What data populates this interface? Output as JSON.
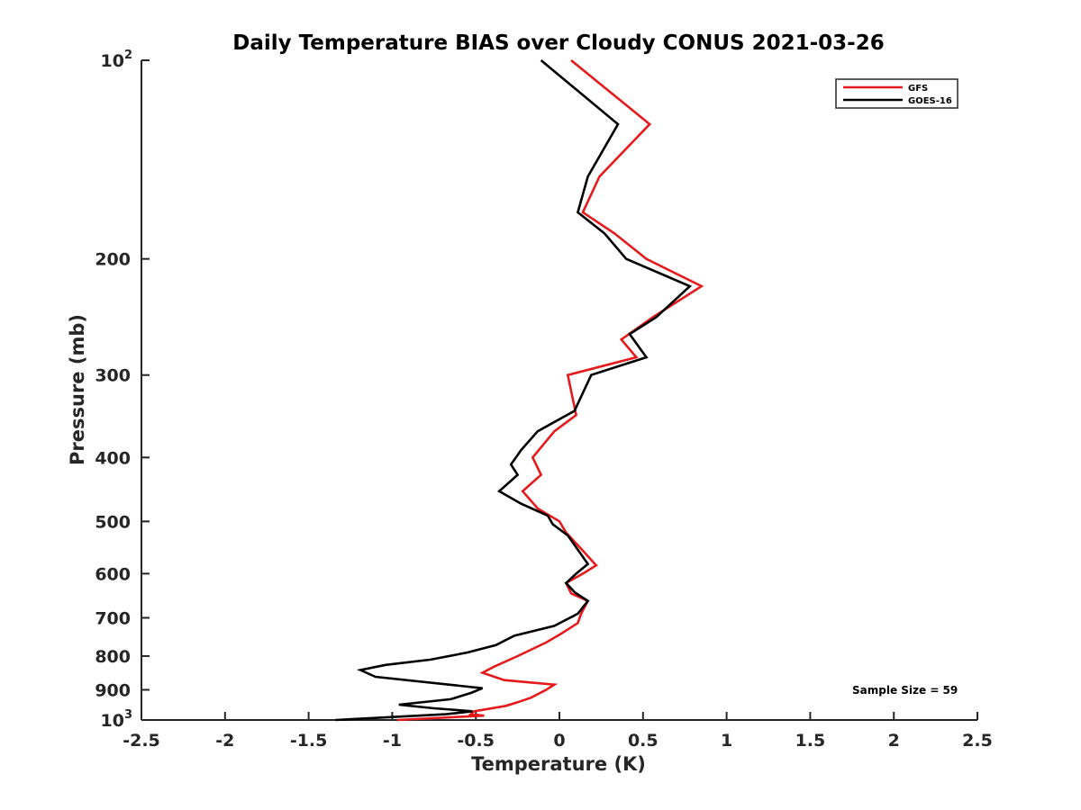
{
  "chart_data": {
    "type": "line",
    "title": "Daily Temperature BIAS over Cloudy CONUS 2021-03-26",
    "xlabel": "Temperature (K)",
    "ylabel": "Pressure (mb)",
    "xlim": [
      -2.5,
      2.5
    ],
    "ylim": [
      100,
      1000
    ],
    "y_scale": "log",
    "y_reversed": true,
    "grid": false,
    "legend_position": "top-right",
    "x_ticks": [
      -2.5,
      -2,
      -1.5,
      -1,
      -0.5,
      0,
      0.5,
      1,
      1.5,
      2,
      2.5
    ],
    "x_tick_labels": [
      "-2.5",
      "-2",
      "-1.5",
      "-1",
      "-0.5",
      "0",
      "0.5",
      "1",
      "1.5",
      "2",
      "2.5"
    ],
    "y_ticks": [
      {
        "value": 100,
        "base": "10",
        "exp": "2"
      },
      {
        "value": 200,
        "label": "200"
      },
      {
        "value": 300,
        "label": "300"
      },
      {
        "value": 400,
        "label": "400"
      },
      {
        "value": 500,
        "label": "500"
      },
      {
        "value": 600,
        "label": "600"
      },
      {
        "value": 700,
        "label": "700"
      },
      {
        "value": 800,
        "label": "800"
      },
      {
        "value": 900,
        "label": "900"
      },
      {
        "value": 1000,
        "base": "10",
        "exp": "3"
      }
    ],
    "annotation": "Sample Size = 59",
    "series": [
      {
        "name": "GFS",
        "color": "#e41a1c",
        "points": [
          [
            0.07,
            100
          ],
          [
            0.54,
            125
          ],
          [
            0.24,
            150
          ],
          [
            0.14,
            170
          ],
          [
            0.33,
            183
          ],
          [
            0.52,
            200
          ],
          [
            0.85,
            220
          ],
          [
            0.56,
            245
          ],
          [
            0.37,
            265
          ],
          [
            0.46,
            282
          ],
          [
            0.05,
            300
          ],
          [
            0.1,
            345
          ],
          [
            -0.03,
            365
          ],
          [
            -0.16,
            400
          ],
          [
            -0.11,
            425
          ],
          [
            -0.22,
            450
          ],
          [
            -0.13,
            478
          ],
          [
            0.0,
            500
          ],
          [
            0.04,
            520
          ],
          [
            0.13,
            550
          ],
          [
            0.22,
            583
          ],
          [
            0.14,
            600
          ],
          [
            0.04,
            620
          ],
          [
            0.07,
            643
          ],
          [
            0.17,
            660
          ],
          [
            0.13,
            690
          ],
          [
            0.11,
            713
          ],
          [
            0.01,
            740
          ],
          [
            -0.08,
            763
          ],
          [
            -0.25,
            800
          ],
          [
            -0.39,
            830
          ],
          [
            -0.46,
            848
          ],
          [
            -0.33,
            870
          ],
          [
            -0.03,
            884
          ],
          [
            -0.08,
            900
          ],
          [
            -0.17,
            925
          ],
          [
            -0.25,
            940
          ],
          [
            -0.32,
            952
          ],
          [
            -0.51,
            970
          ],
          [
            -0.53,
            980
          ],
          [
            -0.45,
            985
          ],
          [
            -0.63,
            990
          ],
          [
            -0.97,
            1000
          ]
        ]
      },
      {
        "name": "GOES-16",
        "color": "#000000",
        "points": [
          [
            -0.11,
            100
          ],
          [
            0.35,
            125
          ],
          [
            0.17,
            150
          ],
          [
            0.11,
            170
          ],
          [
            0.27,
            183
          ],
          [
            0.4,
            200
          ],
          [
            0.78,
            220
          ],
          [
            0.58,
            245
          ],
          [
            0.42,
            260
          ],
          [
            0.52,
            282
          ],
          [
            0.19,
            300
          ],
          [
            0.09,
            340
          ],
          [
            -0.13,
            365
          ],
          [
            -0.23,
            390
          ],
          [
            -0.29,
            410
          ],
          [
            -0.25,
            425
          ],
          [
            -0.36,
            450
          ],
          [
            -0.23,
            470
          ],
          [
            -0.07,
            490
          ],
          [
            -0.04,
            505
          ],
          [
            0.05,
            525
          ],
          [
            0.17,
            580
          ],
          [
            0.1,
            600
          ],
          [
            0.04,
            620
          ],
          [
            0.09,
            640
          ],
          [
            0.17,
            660
          ],
          [
            0.11,
            690
          ],
          [
            -0.03,
            720
          ],
          [
            -0.27,
            745
          ],
          [
            -0.38,
            770
          ],
          [
            -0.55,
            790
          ],
          [
            -0.77,
            810
          ],
          [
            -1.04,
            825
          ],
          [
            -1.19,
            840
          ],
          [
            -1.1,
            860
          ],
          [
            -0.46,
            895
          ],
          [
            -0.53,
            910
          ],
          [
            -0.65,
            930
          ],
          [
            -0.96,
            948
          ],
          [
            -0.75,
            960
          ],
          [
            -0.52,
            970
          ],
          [
            -0.68,
            980
          ],
          [
            -1.34,
            1000
          ]
        ]
      }
    ]
  }
}
